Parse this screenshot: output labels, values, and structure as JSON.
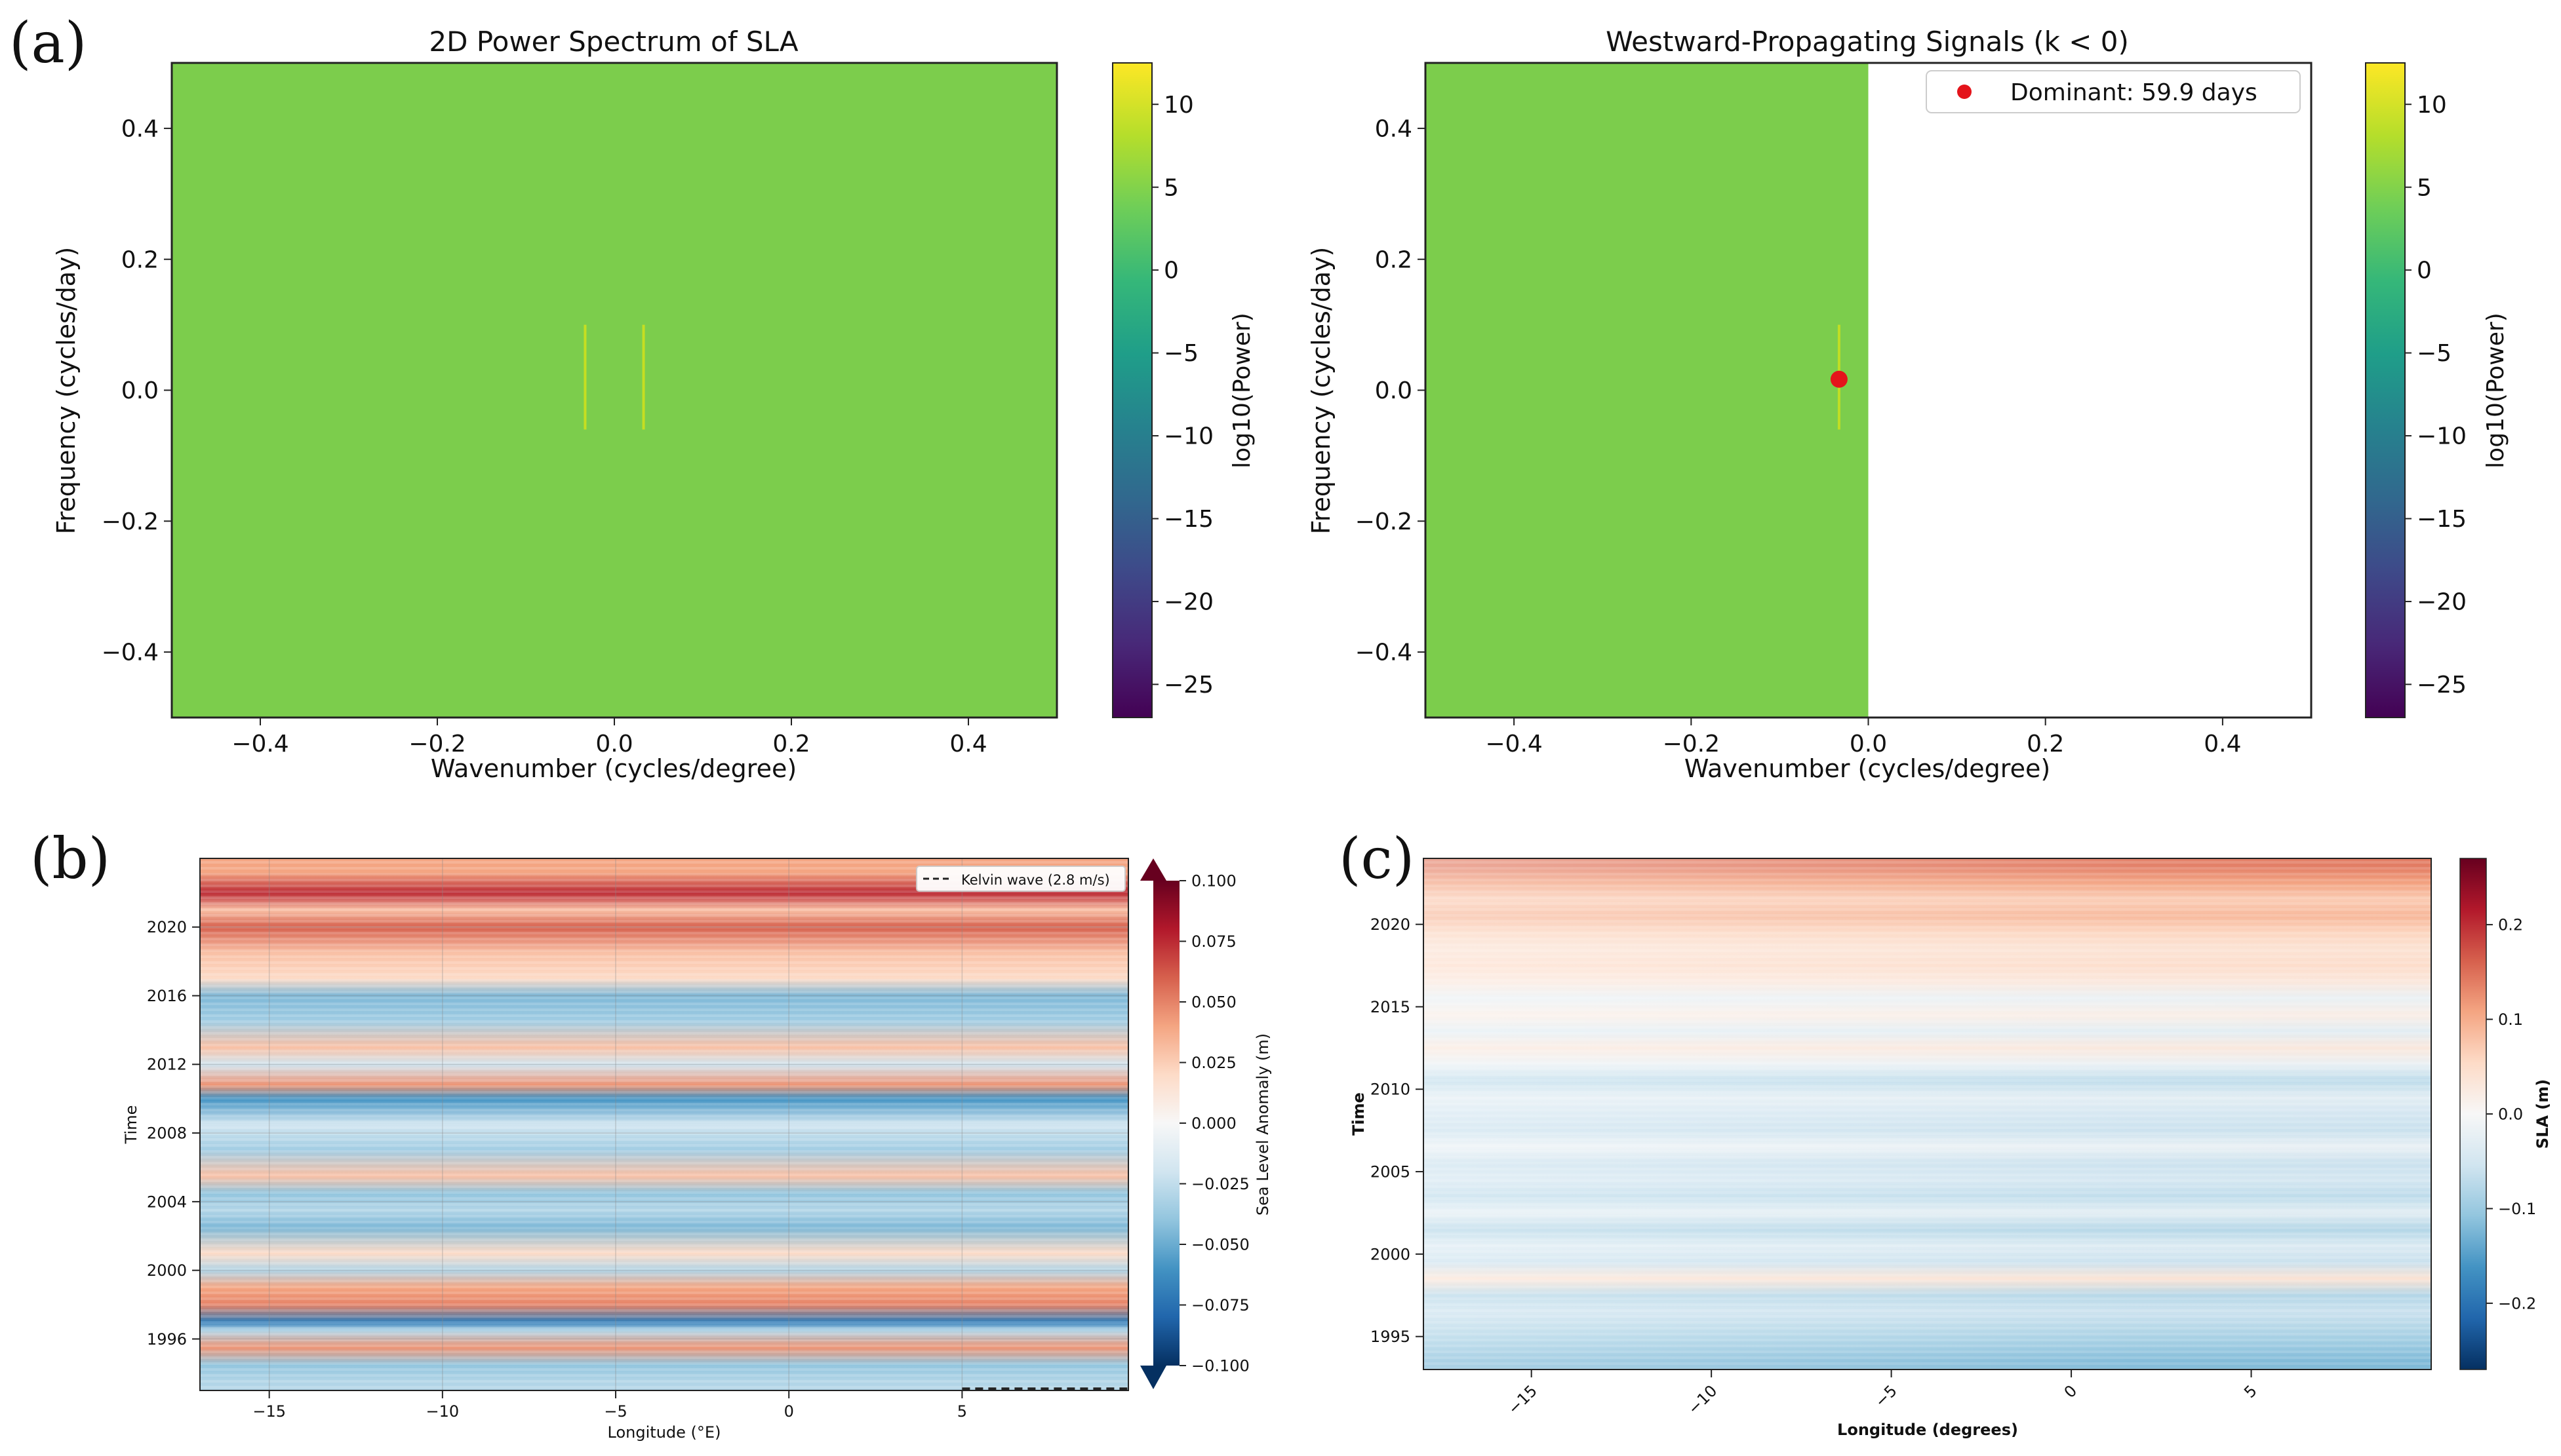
{
  "panel_labels": [
    "(a)",
    "(b)",
    "(c)"
  ],
  "colors": {
    "spectrum_fill": "#7ccd4c",
    "dominant_marker": "#e4141b"
  },
  "chart_data": [
    {
      "id": "a1",
      "type": "heatmap",
      "title": "2D Power Spectrum of SLA",
      "xlabel": "Wavenumber (cycles/degree)",
      "ylabel": "Frequency (cycles/day)",
      "xlim": [
        -0.5,
        0.5
      ],
      "ylim": [
        -0.5,
        0.5
      ],
      "xticks": [
        -0.4,
        -0.2,
        0.0,
        0.2,
        0.4
      ],
      "yticks": [
        -0.4,
        -0.2,
        0.0,
        0.2,
        0.4
      ],
      "xtick_labels": [
        "−0.4",
        "−0.2",
        "0.0",
        "0.2",
        "0.4"
      ],
      "ytick_labels": [
        "−0.4",
        "−0.2",
        "0.0",
        "0.2",
        "0.4"
      ],
      "field_log10_power": 3.5,
      "peak_streaks": [
        {
          "wavenumber": -0.033,
          "freq_range": [
            -0.06,
            0.1
          ]
        },
        {
          "wavenumber": 0.033,
          "freq_range": [
            -0.06,
            0.1
          ]
        }
      ],
      "colorbar": {
        "label": "log10(Power)",
        "colormap": "viridis",
        "range": [
          -27,
          12.5
        ],
        "ticks": [
          10,
          5,
          0,
          -5,
          -10,
          -15,
          -20,
          -25
        ],
        "tick_labels": [
          "10",
          "5",
          "0",
          "−5",
          "−10",
          "−15",
          "−20",
          "−25"
        ]
      }
    },
    {
      "id": "a2",
      "type": "heatmap",
      "title": "Westward-Propagating Signals (k < 0)",
      "xlabel": "Wavenumber (cycles/degree)",
      "ylabel": "Frequency (cycles/day)",
      "xlim": [
        -0.5,
        0.5
      ],
      "ylim": [
        -0.5,
        0.5
      ],
      "xticks": [
        -0.4,
        -0.2,
        0.0,
        0.2,
        0.4
      ],
      "yticks": [
        -0.4,
        -0.2,
        0.0,
        0.2,
        0.4
      ],
      "xtick_labels": [
        "−0.4",
        "−0.2",
        "0.0",
        "0.2",
        "0.4"
      ],
      "ytick_labels": [
        "−0.4",
        "−0.2",
        "0.0",
        "0.2",
        "0.4"
      ],
      "field_log10_power": 3.5,
      "masked_region": "k >= 0",
      "dominant": {
        "wavenumber": -0.033,
        "frequency": 0.0167,
        "period_days": 59.9
      },
      "legend": {
        "label": "Dominant: 59.9 days",
        "loc": "upper right"
      },
      "colorbar": {
        "label": "log10(Power)",
        "colormap": "viridis",
        "range": [
          -27,
          12.5
        ],
        "ticks": [
          10,
          5,
          0,
          -5,
          -10,
          -15,
          -20,
          -25
        ],
        "tick_labels": [
          "10",
          "5",
          "0",
          "−5",
          "−10",
          "−15",
          "−20",
          "−25"
        ]
      }
    },
    {
      "id": "b",
      "type": "heatmap",
      "title": "",
      "xlabel": "Longitude (°E)",
      "ylabel": "Time",
      "xlim": [
        -17,
        9.8
      ],
      "ylim": [
        1993,
        2024
      ],
      "xticks": [
        -15,
        -10,
        -5,
        0,
        5
      ],
      "xtick_labels": [
        "−15",
        "−10",
        "−5",
        "0",
        "5"
      ],
      "yticks": [
        1996,
        2000,
        2004,
        2008,
        2012,
        2016,
        2020
      ],
      "ytick_labels": [
        "1996",
        "2000",
        "2004",
        "2008",
        "2012",
        "2016",
        "2020"
      ],
      "grid": true,
      "kelvin_line": {
        "x": [
          5,
          9.8
        ],
        "y": [
          1993.1,
          1993.1
        ]
      },
      "legend": {
        "label": "Kelvin wave (2.8 m/s)",
        "loc": "upper right"
      },
      "colorbar": {
        "label": "Sea Level Anomaly (m)",
        "colormap": "RdBu_r",
        "range": [
          -0.1,
          0.1
        ],
        "extend": "both",
        "ticks": [
          0.1,
          0.075,
          0.05,
          0.025,
          0,
          -0.025,
          -0.05,
          -0.075,
          -0.1
        ],
        "tick_labels": [
          "0.100",
          "0.075",
          "0.050",
          "0.025",
          "0.000",
          "−0.025",
          "−0.050",
          "−0.075",
          "−0.100"
        ]
      },
      "sla_by_time_bands": [
        {
          "t": 1993.5,
          "v": -0.03
        },
        {
          "t": 1994.5,
          "v": -0.04
        },
        {
          "t": 1995.5,
          "v": 0.045
        },
        {
          "t": 1996.5,
          "v": -0.03
        },
        {
          "t": 1997.0,
          "v": -0.07
        },
        {
          "t": 1998.0,
          "v": 0.05
        },
        {
          "t": 1999.0,
          "v": 0.04
        },
        {
          "t": 2000.0,
          "v": -0.03
        },
        {
          "t": 2001.0,
          "v": 0.02
        },
        {
          "t": 2002.5,
          "v": -0.045
        },
        {
          "t": 2003.5,
          "v": -0.03
        },
        {
          "t": 2004.5,
          "v": -0.04
        },
        {
          "t": 2005.5,
          "v": 0.03
        },
        {
          "t": 2007.0,
          "v": -0.035
        },
        {
          "t": 2008.5,
          "v": -0.02
        },
        {
          "t": 2010.0,
          "v": -0.06
        },
        {
          "t": 2010.8,
          "v": 0.045
        },
        {
          "t": 2012.0,
          "v": -0.02
        },
        {
          "t": 2013.0,
          "v": 0.03
        },
        {
          "t": 2014.5,
          "v": -0.035
        },
        {
          "t": 2016.0,
          "v": -0.045
        },
        {
          "t": 2017.0,
          "v": 0.02
        },
        {
          "t": 2018.5,
          "v": 0.03
        },
        {
          "t": 2020.0,
          "v": 0.06
        },
        {
          "t": 2021.0,
          "v": 0.03
        },
        {
          "t": 2022.0,
          "v": 0.075
        },
        {
          "t": 2023.2,
          "v": 0.04
        }
      ]
    },
    {
      "id": "c",
      "type": "heatmap",
      "title": "",
      "xlabel": "Longitude (degrees)",
      "ylabel": "Time",
      "xlim": [
        -18,
        10
      ],
      "ylim": [
        1993,
        2024
      ],
      "xticks": [
        -15,
        -10,
        -5,
        0,
        5
      ],
      "xtick_labels": [
        "−15",
        "−10",
        "−5",
        "0",
        "5"
      ],
      "yticks": [
        1995,
        2000,
        2005,
        2010,
        2015,
        2020
      ],
      "ytick_labels": [
        "1995",
        "2000",
        "2005",
        "2010",
        "2015",
        "2020"
      ],
      "colorbar": {
        "label": "SLA (m)",
        "colormap": "RdBu_r",
        "range": [
          -0.27,
          0.27
        ],
        "ticks": [
          0.2,
          0.1,
          0.0,
          -0.1,
          -0.2
        ],
        "tick_labels": [
          "0.2",
          "0.1",
          "0.0",
          "−0.1",
          "−0.2"
        ]
      },
      "sla_by_time_bands": [
        {
          "t": 1993.5,
          "v": -0.12
        },
        {
          "t": 1994.5,
          "v": -0.1
        },
        {
          "t": 1995.5,
          "v": -0.08
        },
        {
          "t": 1996.5,
          "v": -0.06
        },
        {
          "t": 1997.5,
          "v": -0.08
        },
        {
          "t": 1998.5,
          "v": 0.04
        },
        {
          "t": 1999.5,
          "v": -0.06
        },
        {
          "t": 2000.5,
          "v": -0.04
        },
        {
          "t": 2001.5,
          "v": -0.08
        },
        {
          "t": 2002.5,
          "v": -0.03
        },
        {
          "t": 2003.5,
          "v": -0.07
        },
        {
          "t": 2004.5,
          "v": -0.05
        },
        {
          "t": 2005.5,
          "v": -0.06
        },
        {
          "t": 2006.5,
          "v": -0.02
        },
        {
          "t": 2007.5,
          "v": -0.06
        },
        {
          "t": 2008.5,
          "v": -0.05
        },
        {
          "t": 2009.5,
          "v": -0.03
        },
        {
          "t": 2010.5,
          "v": -0.07
        },
        {
          "t": 2011.5,
          "v": -0.02
        },
        {
          "t": 2012.5,
          "v": 0.03
        },
        {
          "t": 2013.5,
          "v": -0.03
        },
        {
          "t": 2014.5,
          "v": 0.02
        },
        {
          "t": 2015.5,
          "v": -0.02
        },
        {
          "t": 2016.5,
          "v": 0.03
        },
        {
          "t": 2017.5,
          "v": 0.05
        },
        {
          "t": 2018.5,
          "v": 0.04
        },
        {
          "t": 2019.5,
          "v": 0.06
        },
        {
          "t": 2020.5,
          "v": 0.09
        },
        {
          "t": 2021.5,
          "v": 0.07
        },
        {
          "t": 2022.5,
          "v": 0.11
        },
        {
          "t": 2023.5,
          "v": 0.14
        }
      ]
    }
  ]
}
